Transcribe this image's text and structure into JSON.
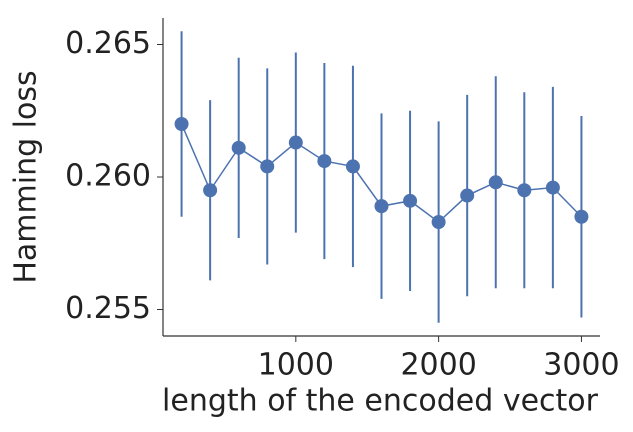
{
  "chart_data": {
    "type": "errorbar-line",
    "xlabel": "length of the encoded vector",
    "ylabel": "Hamming loss",
    "series": [
      {
        "color": "#4c72b0",
        "x": [
          200,
          400,
          600,
          800,
          1000,
          1200,
          1400,
          1600,
          1800,
          2000,
          2200,
          2400,
          2600,
          2800,
          3000
        ],
        "values": [
          0.262,
          0.2595,
          0.2611,
          0.2604,
          0.2613,
          0.2606,
          0.2604,
          0.2589,
          0.2591,
          0.2583,
          0.2593,
          0.2598,
          0.2595,
          0.2596,
          0.2585
        ],
        "errors": [
          0.0035,
          0.0034,
          0.0034,
          0.0037,
          0.0034,
          0.0037,
          0.0038,
          0.0035,
          0.0034,
          0.0038,
          0.0038,
          0.004,
          0.0037,
          0.0038,
          0.0038
        ]
      }
    ],
    "xlim": [
      70,
      3130
    ],
    "xticks": [
      1000,
      2000,
      3000
    ],
    "ylim": [
      0.254,
      0.266
    ],
    "yticks": [
      0.255,
      {
        "value": 0.26,
        "label": "0.260"
      },
      0.265
    ]
  }
}
